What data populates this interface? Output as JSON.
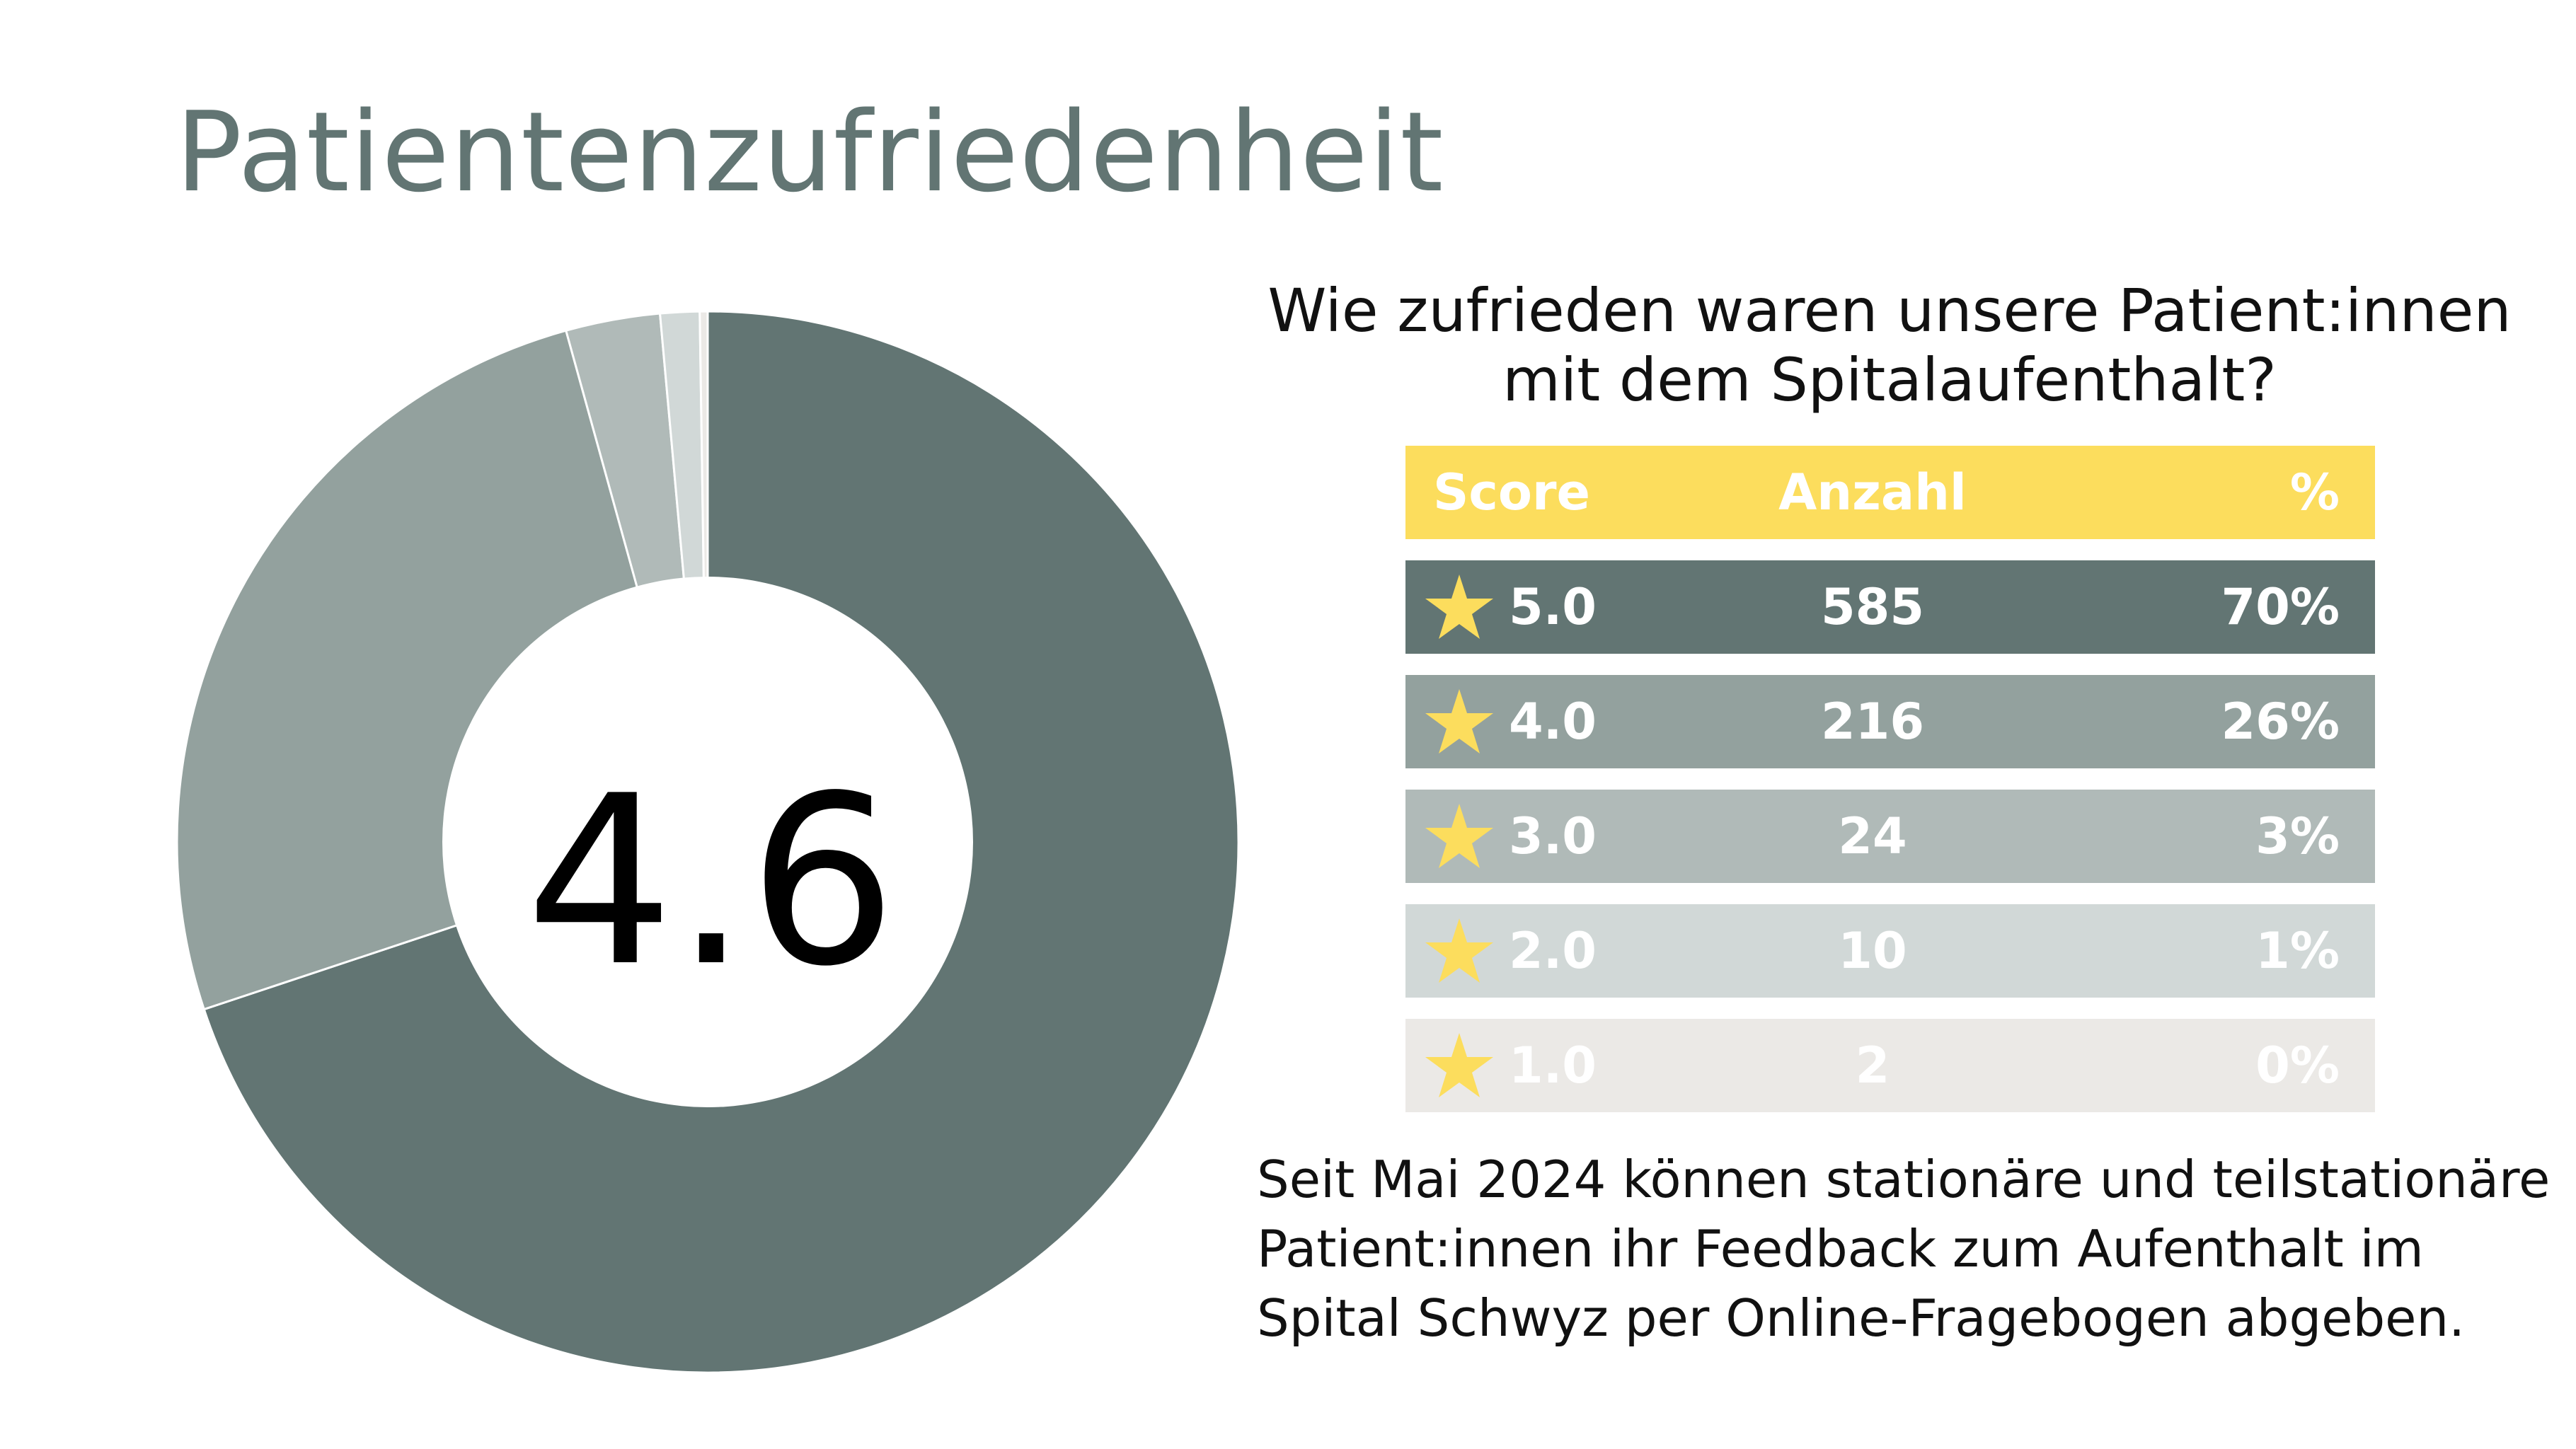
{
  "title": "Patientenzufriedenheit",
  "question": {
    "line1": "Wie zufrieden waren unsere Patient:innen",
    "line2": "mit dem Spitalaufenthalt?"
  },
  "table": {
    "headers": {
      "score": "Score",
      "count": "Anzahl",
      "percent": "%"
    },
    "rows": [
      {
        "score": "5.0",
        "count": "585",
        "percent": "70%"
      },
      {
        "score": "4.0",
        "count": "216",
        "percent": "26%"
      },
      {
        "score": "3.0",
        "count": "24",
        "percent": "3%"
      },
      {
        "score": "2.0",
        "count": "10",
        "percent": "1%"
      },
      {
        "score": "1.0",
        "count": "2",
        "percent": "0%"
      }
    ]
  },
  "footnote": {
    "line1": "Seit Mai 2024 können stationäre und teilstationäre",
    "line2": "Patient:innen ihr Feedback zum Aufenthalt im",
    "line3": "Spital Schwyz per Online-Fragebogen abgeben."
  },
  "colors": {
    "header_bg": "#fcdd5d",
    "star": "#fcdd5d",
    "score_5": "#627573",
    "score_4": "#93a19e",
    "score_3": "#b0bab8",
    "score_2": "#d1d8d7",
    "score_1": "#ebe9e6",
    "title": "#627573"
  },
  "chart_data": {
    "type": "pie",
    "donut": true,
    "center_label": "4.6",
    "categories": [
      "5.0",
      "4.0",
      "3.0",
      "2.0",
      "1.0"
    ],
    "values": [
      585,
      216,
      24,
      10,
      2
    ],
    "percent_labels": [
      "70%",
      "26%",
      "3%",
      "1%",
      "0%"
    ],
    "colors": [
      "#627573",
      "#93a19e",
      "#b0bab8",
      "#d1d8d7",
      "#ebe9e6"
    ],
    "start_angle": "12 o'clock",
    "direction": "clockwise"
  }
}
